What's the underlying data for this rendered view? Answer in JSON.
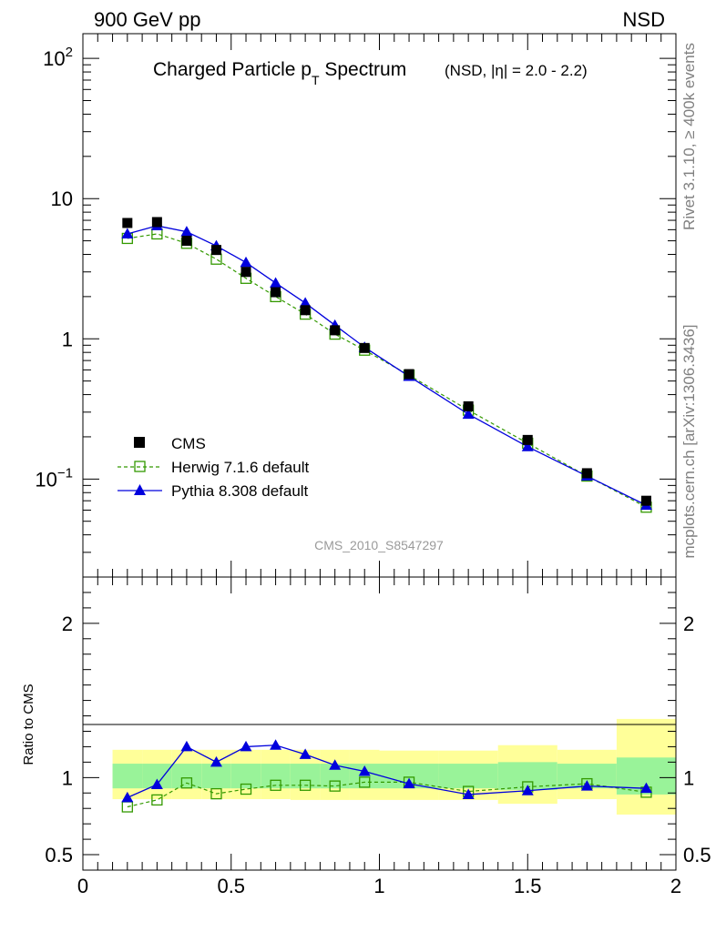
{
  "header": {
    "left": "900 GeV pp",
    "right": "NSD"
  },
  "side_labels": {
    "rivet": "Rivet 3.1.10, ≥ 400k events",
    "mcplots": "mcplots.cern.ch [arXiv:1306.3436]"
  },
  "analysis_id": "CMS_2010_S8547297",
  "colors": {
    "cms": "#000000",
    "herwig": "#339900",
    "pythia": "#0000dd",
    "band_inner": "#99f399",
    "band_outer": "#ffff99"
  },
  "chart_data": [
    {
      "type": "scatter",
      "panel": "main",
      "title_main": "Charged Particle p",
      "title_sub": "T",
      "title_rest": " Spectrum",
      "title_paren": "(NSD, |η| = 2.0 - 2.2)",
      "xlabel": "",
      "ylabel": "",
      "xlim": [
        0,
        2
      ],
      "ylim": [
        0.02,
        150
      ],
      "yscale": "log",
      "x_ticks": [
        "0",
        "0.5",
        "1",
        "1.5",
        "2"
      ],
      "y_ticks": [
        {
          "value": 0.1,
          "base": "10",
          "exp": "−1"
        },
        {
          "value": 1,
          "base": "1",
          "exp": ""
        },
        {
          "value": 10,
          "base": "10",
          "exp": ""
        },
        {
          "value": 100,
          "base": "10",
          "exp": "2"
        }
      ],
      "legend_position": "bottom-left",
      "series": [
        {
          "name": "CMS",
          "style": "data",
          "x": [
            0.15,
            0.25,
            0.35,
            0.45,
            0.55,
            0.65,
            0.75,
            0.85,
            0.95,
            1.1,
            1.3,
            1.5,
            1.7,
            1.9
          ],
          "y": [
            6.7,
            6.8,
            5.0,
            4.3,
            3.0,
            2.15,
            1.6,
            1.15,
            0.86,
            0.56,
            0.33,
            0.19,
            0.11,
            0.07
          ]
        },
        {
          "name": "Herwig 7.1.6 default",
          "style": "dashed-open-square",
          "x": [
            0.15,
            0.25,
            0.35,
            0.45,
            0.55,
            0.65,
            0.75,
            0.85,
            0.95,
            1.1,
            1.3,
            1.5,
            1.7,
            1.9
          ],
          "y": [
            5.2,
            5.6,
            4.8,
            3.7,
            2.7,
            2.0,
            1.5,
            1.08,
            0.83,
            0.55,
            0.31,
            0.18,
            0.105,
            0.063
          ]
        },
        {
          "name": "Pythia 8.308 default",
          "style": "solid-triangle",
          "x": [
            0.15,
            0.25,
            0.35,
            0.45,
            0.55,
            0.65,
            0.75,
            0.85,
            0.95,
            1.1,
            1.3,
            1.5,
            1.7,
            1.9
          ],
          "y": [
            5.6,
            6.4,
            5.8,
            4.6,
            3.5,
            2.5,
            1.8,
            1.25,
            0.87,
            0.54,
            0.29,
            0.17,
            0.105,
            0.065
          ]
        }
      ]
    },
    {
      "type": "line",
      "panel": "ratio",
      "xlabel": "",
      "ylabel": "Ratio to CMS",
      "xlim": [
        0,
        2
      ],
      "ylim": [
        0.4,
        2.3
      ],
      "x_ticks": [
        "0",
        "0.5",
        "1",
        "1.5",
        "2"
      ],
      "y_ticks": [
        "0.5",
        "1",
        "2"
      ],
      "bands": [
        {
          "x0": 0.1,
          "x1": 0.2,
          "inner": [
            0.93,
            1.09
          ],
          "outer": [
            0.86,
            1.18
          ]
        },
        {
          "x0": 0.2,
          "x1": 0.3,
          "inner": [
            0.93,
            1.09
          ],
          "outer": [
            0.86,
            1.18
          ]
        },
        {
          "x0": 0.3,
          "x1": 0.4,
          "inner": [
            0.93,
            1.09
          ],
          "outer": [
            0.86,
            1.18
          ]
        },
        {
          "x0": 0.4,
          "x1": 0.5,
          "inner": [
            0.93,
            1.09
          ],
          "outer": [
            0.86,
            1.18
          ]
        },
        {
          "x0": 0.5,
          "x1": 0.6,
          "inner": [
            0.93,
            1.09
          ],
          "outer": [
            0.86,
            1.18
          ]
        },
        {
          "x0": 0.6,
          "x1": 0.7,
          "inner": [
            0.93,
            1.09
          ],
          "outer": [
            0.86,
            1.18
          ]
        },
        {
          "x0": 0.7,
          "x1": 0.8,
          "inner": [
            0.93,
            1.09
          ],
          "outer": [
            0.855,
            1.18
          ]
        },
        {
          "x0": 0.8,
          "x1": 0.9,
          "inner": [
            0.93,
            1.09
          ],
          "outer": [
            0.855,
            1.18
          ]
        },
        {
          "x0": 0.9,
          "x1": 1.0,
          "inner": [
            0.93,
            1.09
          ],
          "outer": [
            0.855,
            1.18
          ]
        },
        {
          "x0": 1.0,
          "x1": 1.2,
          "inner": [
            0.93,
            1.09
          ],
          "outer": [
            0.855,
            1.175
          ]
        },
        {
          "x0": 1.2,
          "x1": 1.4,
          "inner": [
            0.93,
            1.09
          ],
          "outer": [
            0.855,
            1.175
          ]
        },
        {
          "x0": 1.4,
          "x1": 1.6,
          "inner": [
            0.92,
            1.1
          ],
          "outer": [
            0.83,
            1.21
          ]
        },
        {
          "x0": 1.6,
          "x1": 1.8,
          "inner": [
            0.93,
            1.09
          ],
          "outer": [
            0.86,
            1.18
          ]
        },
        {
          "x0": 1.8,
          "x1": 2.0,
          "inner": [
            0.89,
            1.13
          ],
          "outer": [
            0.76,
            1.38
          ]
        }
      ],
      "series": [
        {
          "name": "Herwig 7.1.6 default",
          "style": "dashed-open-square",
          "x": [
            0.15,
            0.25,
            0.35,
            0.45,
            0.55,
            0.65,
            0.75,
            0.85,
            0.95,
            1.1,
            1.3,
            1.5,
            1.7,
            1.9
          ],
          "y": [
            0.81,
            0.855,
            0.965,
            0.895,
            0.925,
            0.95,
            0.95,
            0.945,
            0.97,
            0.97,
            0.91,
            0.94,
            0.96,
            0.905
          ]
        },
        {
          "name": "Pythia 8.308 default",
          "style": "solid-triangle",
          "x": [
            0.15,
            0.25,
            0.35,
            0.45,
            0.55,
            0.65,
            0.75,
            0.85,
            0.95,
            1.1,
            1.3,
            1.5,
            1.7,
            1.9
          ],
          "y": [
            0.87,
            0.955,
            1.2,
            1.1,
            1.2,
            1.21,
            1.15,
            1.08,
            1.04,
            0.96,
            0.89,
            0.915,
            0.945,
            0.93
          ]
        }
      ]
    }
  ]
}
